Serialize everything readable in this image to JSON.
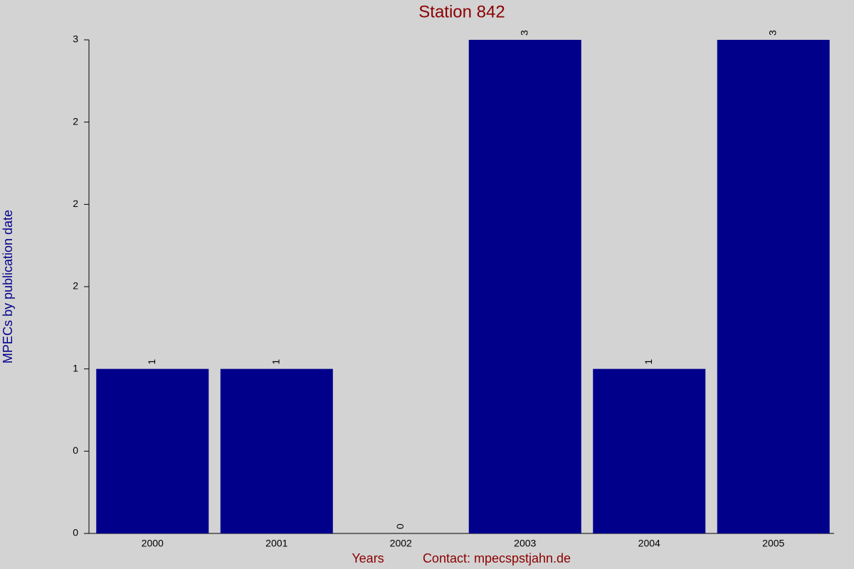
{
  "chart_data": {
    "type": "bar",
    "title": "Station 842",
    "x_label": "Years",
    "footer": "Contact: mpecspstjahn.de",
    "y_label": "MPECs by publication date",
    "categories": [
      "2000",
      "2001",
      "2002",
      "2003",
      "2004",
      "2005"
    ],
    "values": [
      1,
      1,
      0,
      3,
      1,
      3
    ],
    "color": "#00008b",
    "ylim": [
      0,
      3
    ],
    "yticks": [
      0,
      {
        "value": 0.5,
        "label": "0"
      },
      1,
      {
        "value": 1.5,
        "label": "2"
      },
      2,
      {
        "value": 2.5,
        "label": "2"
      },
      3
    ],
    "grid": false
  }
}
